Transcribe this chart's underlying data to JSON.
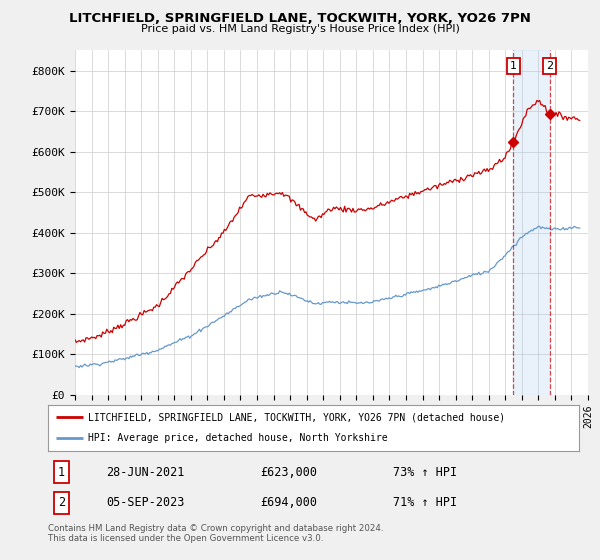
{
  "title": "LITCHFIELD, SPRINGFIELD LANE, TOCKWITH, YORK, YO26 7PN",
  "subtitle": "Price paid vs. HM Land Registry's House Price Index (HPI)",
  "legend_label_red": "LITCHFIELD, SPRINGFIELD LANE, TOCKWITH, YORK, YO26 7PN (detached house)",
  "legend_label_blue": "HPI: Average price, detached house, North Yorkshire",
  "annotation1": {
    "num": "1",
    "date": "28-JUN-2021",
    "price": "£623,000",
    "hpi": "73% ↑ HPI"
  },
  "annotation2": {
    "num": "2",
    "date": "05-SEP-2023",
    "price": "£694,000",
    "hpi": "71% ↑ HPI"
  },
  "footer": "Contains HM Land Registry data © Crown copyright and database right 2024.\nThis data is licensed under the Open Government Licence v3.0.",
  "ylim": [
    0,
    850000
  ],
  "yticks": [
    0,
    100000,
    200000,
    300000,
    400000,
    500000,
    600000,
    700000,
    800000
  ],
  "ytick_labels": [
    "£0",
    "£100K",
    "£200K",
    "£300K",
    "£400K",
    "£500K",
    "£600K",
    "£700K",
    "£800K"
  ],
  "color_red": "#cc0000",
  "color_blue": "#6699cc",
  "color_bg": "#f0f0f0",
  "color_plot_bg": "#ffffff",
  "marker1_x": 2021.49,
  "marker1_y": 623000,
  "marker2_x": 2023.68,
  "marker2_y": 694000,
  "xmin": 1995,
  "xmax": 2026
}
